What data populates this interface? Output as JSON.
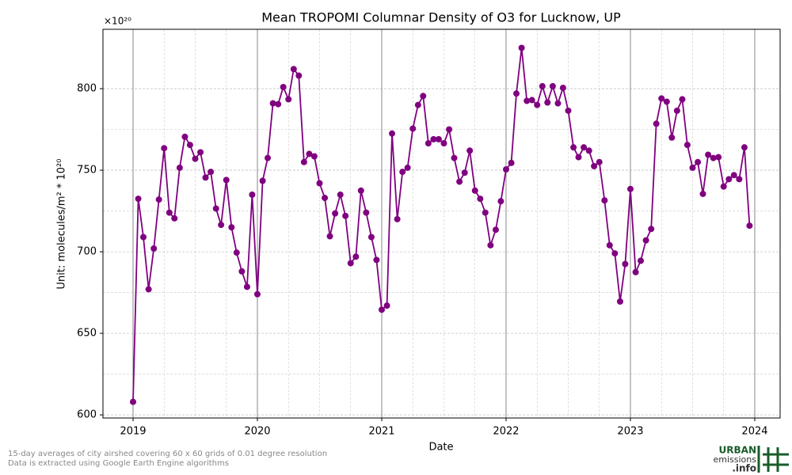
{
  "chart_data": {
    "type": "line",
    "title": "Mean TROPOMI Columnar Density of O3 for Lucknow, UP",
    "x_label": "Date",
    "y_label": "Unit: molecules/m² * 10²⁰",
    "y_offset_label": "×10²⁰",
    "footnotes": [
      "15-day averages of city airshed covering 60 x 60 grids of 0.01 degree resolution",
      "Data is extracted using Google Earth Engine algorithms"
    ],
    "logo": [
      "URBAN",
      "emissions",
      ".info"
    ],
    "xlim": [
      2018.758,
      2024.204
    ],
    "xticks": [
      2019,
      2020,
      2021,
      2022,
      2023,
      2024
    ],
    "ylim": [
      598.1,
      836.4
    ],
    "yticks": [
      600,
      650,
      700,
      750,
      800
    ],
    "grid": true,
    "series": [
      {
        "name": "O3",
        "color": "#800080",
        "x": [
          2019,
          2019.042,
          2019.083,
          2019.125,
          2019.167,
          2019.208,
          2019.25,
          2019.292,
          2019.333,
          2019.375,
          2019.417,
          2019.458,
          2019.5,
          2019.542,
          2019.583,
          2019.625,
          2019.667,
          2019.708,
          2019.75,
          2019.792,
          2019.833,
          2019.875,
          2019.917,
          2019.958,
          2020,
          2020.042,
          2020.083,
          2020.125,
          2020.167,
          2020.208,
          2020.25,
          2020.292,
          2020.333,
          2020.375,
          2020.417,
          2020.458,
          2020.5,
          2020.542,
          2020.583,
          2020.625,
          2020.667,
          2020.708,
          2020.75,
          2020.792,
          2020.833,
          2020.875,
          2020.917,
          2020.958,
          2021,
          2021.042,
          2021.083,
          2021.125,
          2021.167,
          2021.208,
          2021.25,
          2021.292,
          2021.333,
          2021.375,
          2021.417,
          2021.458,
          2021.5,
          2021.542,
          2021.583,
          2021.625,
          2021.667,
          2021.708,
          2021.75,
          2021.792,
          2021.833,
          2021.875,
          2021.917,
          2021.958,
          2022,
          2022.042,
          2022.083,
          2022.125,
          2022.167,
          2022.208,
          2022.25,
          2022.292,
          2022.333,
          2022.375,
          2022.417,
          2022.458,
          2022.5,
          2022.542,
          2022.583,
          2022.625,
          2022.667,
          2022.708,
          2022.75,
          2022.792,
          2022.833,
          2022.875,
          2022.917,
          2022.958,
          2023,
          2023.042,
          2023.083,
          2023.125,
          2023.167,
          2023.208,
          2023.25,
          2023.292,
          2023.333,
          2023.375,
          2023.417,
          2023.458,
          2023.5,
          2023.542,
          2023.583,
          2023.625,
          2023.667,
          2023.708,
          2023.75,
          2023.792,
          2023.833,
          2023.875,
          2023.917,
          2023.958
        ],
        "values": [
          608,
          732.5,
          709,
          677,
          702,
          732,
          763.5,
          724,
          720.5,
          751.5,
          770.5,
          765.5,
          757,
          761,
          745.5,
          749,
          726.5,
          716.5,
          744,
          715,
          699.5,
          688,
          678.5,
          735,
          674,
          743.5,
          757.5,
          791,
          790.5,
          801,
          793.5,
          812,
          808,
          755,
          760,
          758.5,
          742,
          733,
          709.5,
          723.5,
          735,
          722,
          693,
          697,
          737.5,
          724,
          709,
          695,
          664.5,
          667,
          772.5,
          720,
          749,
          751.5,
          775.5,
          790,
          795.5,
          766.5,
          769,
          769,
          766.5,
          775,
          757.5,
          743,
          748.5,
          762,
          737.5,
          732.5,
          724,
          704,
          713.5,
          731,
          750.5,
          754.5,
          797,
          825,
          792.5,
          793,
          790,
          801.5,
          791.5,
          801.5,
          791,
          800.5,
          786.5,
          764,
          758,
          764,
          762,
          752.5,
          755,
          731.5,
          704,
          699,
          669.5,
          692.5,
          738.5,
          687.5,
          694.5,
          707,
          714,
          778.5,
          794,
          792,
          770,
          786.5,
          793.5,
          765.5,
          751.5,
          755,
          735.5,
          759.5,
          757.5,
          758,
          740,
          744.5,
          747,
          744.5,
          764,
          716
        ]
      }
    ]
  }
}
